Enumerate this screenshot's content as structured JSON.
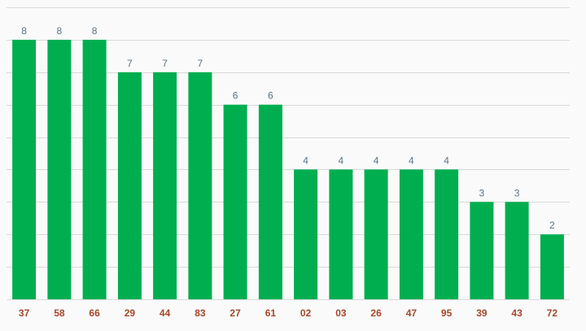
{
  "chart_data": {
    "type": "bar",
    "categories": [
      "37",
      "58",
      "66",
      "29",
      "44",
      "83",
      "27",
      "61",
      "02",
      "03",
      "26",
      "47",
      "95",
      "39",
      "43",
      "72"
    ],
    "values": [
      8,
      8,
      8,
      7,
      7,
      7,
      6,
      6,
      4,
      4,
      4,
      4,
      4,
      3,
      3,
      2
    ],
    "ylim": [
      0,
      9
    ],
    "grid": true,
    "data_labels": true,
    "colors": {
      "bar": "#00ae4f",
      "value_label": "#5a7384",
      "x_tick_label": "#a5472a",
      "grid": "#d9d9d9",
      "background": "#fafafa"
    }
  }
}
